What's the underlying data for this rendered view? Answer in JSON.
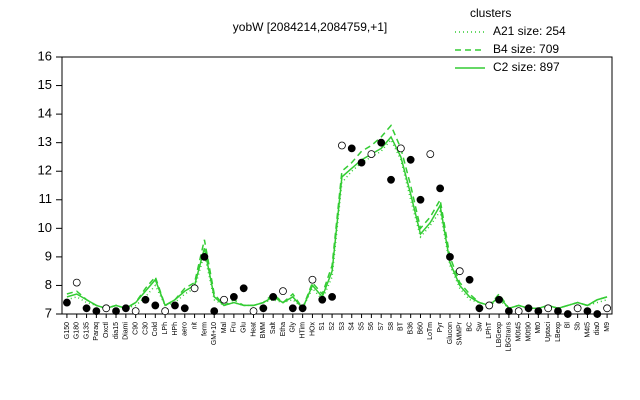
{
  "chart_data": {
    "type": "line",
    "title": "yobW [2084214,2084759,+1]",
    "legend_title": "clusters",
    "legend_position": "top-right",
    "legend_color": "#33cc33",
    "ylim": [
      7,
      16
    ],
    "yticks": [
      7,
      8,
      9,
      10,
      11,
      12,
      13,
      14,
      15,
      16
    ],
    "categories": [
      "G150",
      "G180",
      "G135",
      "Paraq",
      "Oxctl",
      "dia15",
      "Diami",
      "C90",
      "C30",
      "Cold",
      "LPh",
      "HPh",
      "aero",
      "nit",
      "ferm",
      "GM+10",
      "Mal",
      "Fru",
      "Glu",
      "Heat",
      "BMM",
      "Salt",
      "Etha",
      "Gly",
      "HTim",
      "HOx",
      "S1",
      "S2",
      "S3",
      "S4",
      "S5",
      "S6",
      "S7",
      "S8",
      "BT",
      "B36",
      "B60",
      "LoTm",
      "Pyr",
      "Glucon",
      "SMMPr",
      "BC",
      "Sw",
      "LPhT",
      "LBGexp",
      "LBGtrans",
      "M0t45",
      "M0t90",
      "Mt0",
      "Uptaci",
      "LBexp",
      "Bl",
      "Sb",
      "M4t5",
      "dia0",
      "M9"
    ],
    "series": [
      {
        "name": "A21 size: 254",
        "color": "#33cc33",
        "linestyle": "dotted",
        "values": [
          7.5,
          7.6,
          7.4,
          7.3,
          7.2,
          7.3,
          7.2,
          7.3,
          7.6,
          8.0,
          7.3,
          7.4,
          7.7,
          7.9,
          9.1,
          7.5,
          7.3,
          7.4,
          7.3,
          7.3,
          7.4,
          7.5,
          7.4,
          7.5,
          7.2,
          7.9,
          7.5,
          8.3,
          11.6,
          12.0,
          12.3,
          12.5,
          12.7,
          13.1,
          12.4,
          11.0,
          9.7,
          10.1,
          10.6,
          8.7,
          7.9,
          7.5,
          7.4,
          7.3,
          7.5,
          7.2,
          7.3,
          7.2,
          7.2,
          7.3,
          7.2,
          7.3,
          7.4,
          7.3,
          7.4,
          7.5
        ]
      },
      {
        "name": "B4 size: 709",
        "color": "#33cc33",
        "linestyle": "dashed",
        "values": [
          7.7,
          7.8,
          7.5,
          7.3,
          7.2,
          7.3,
          7.2,
          7.4,
          7.9,
          8.3,
          7.3,
          7.5,
          7.9,
          8.1,
          9.6,
          7.7,
          7.3,
          7.5,
          7.3,
          7.3,
          7.4,
          7.7,
          7.4,
          7.7,
          7.2,
          8.1,
          7.7,
          8.7,
          12.0,
          12.3,
          12.7,
          12.9,
          13.2,
          13.6,
          12.8,
          11.5,
          10.0,
          10.4,
          11.0,
          9.0,
          8.1,
          7.7,
          7.4,
          7.3,
          7.7,
          7.2,
          7.3,
          7.2,
          7.2,
          7.3,
          7.2,
          7.3,
          7.4,
          7.3,
          7.5,
          7.6
        ]
      },
      {
        "name": "C2 size: 897",
        "color": "#33cc33",
        "linestyle": "solid",
        "values": [
          7.6,
          7.7,
          7.5,
          7.3,
          7.2,
          7.3,
          7.2,
          7.4,
          7.8,
          8.2,
          7.3,
          7.5,
          7.8,
          8.0,
          9.3,
          7.6,
          7.3,
          7.4,
          7.3,
          7.3,
          7.4,
          7.6,
          7.4,
          7.6,
          7.2,
          8.0,
          7.6,
          8.5,
          11.8,
          12.1,
          12.4,
          12.6,
          12.8,
          13.2,
          12.5,
          11.2,
          9.8,
          10.2,
          10.8,
          8.8,
          8.0,
          7.6,
          7.4,
          7.3,
          7.6,
          7.2,
          7.3,
          7.2,
          7.2,
          7.3,
          7.2,
          7.3,
          7.4,
          7.3,
          7.5,
          7.6
        ]
      }
    ],
    "points": {
      "fill": "#000000",
      "stroke": "#000000",
      "values": [
        7.4,
        8.1,
        7.2,
        7.1,
        7.2,
        7.1,
        7.2,
        7.1,
        7.5,
        7.3,
        7.1,
        7.3,
        7.2,
        7.9,
        9.0,
        7.1,
        7.5,
        7.6,
        7.9,
        7.1,
        7.2,
        7.6,
        7.8,
        7.2,
        7.2,
        8.2,
        7.5,
        7.6,
        12.9,
        12.8,
        12.3,
        12.6,
        13.0,
        11.7,
        12.8,
        12.4,
        11.0,
        12.6,
        11.4,
        9.0,
        8.5,
        8.2,
        7.2,
        7.3,
        7.5,
        7.1,
        7.1,
        7.2,
        7.1,
        7.2,
        7.1,
        7.0,
        7.2,
        7.1,
        7.0,
        7.2
      ]
    }
  }
}
